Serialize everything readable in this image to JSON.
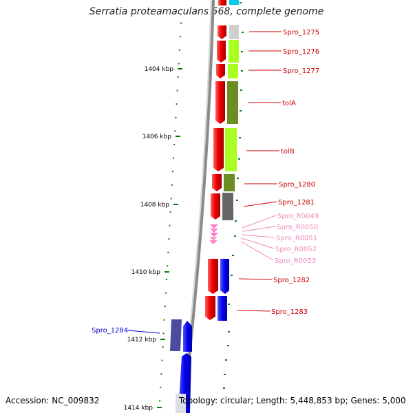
{
  "title": "Serratia proteamaculans 568, complete genome",
  "footer": {
    "accession": "Accession: NC_009832",
    "topology": "Topology: circular; Length: 5,448,853 bp; Genes: 5,000"
  },
  "colors": {
    "backbone": "#8a8a8a",
    "forward_strand": "#ee0000",
    "gene_label_red": "#cc0000",
    "gene_label_pink": "#ee88bb",
    "gene_label_blue": "#0000cc",
    "tick": "#008000"
  },
  "ruler_labels": [
    "1404 kbp",
    "1406 kbp",
    "1408 kbp",
    "1410 kbp",
    "1412 kbp",
    "1414 kbp"
  ],
  "genes": [
    {
      "label": "Spro_1275"
    },
    {
      "label": "Spro_1276"
    },
    {
      "label": "Spro_1277"
    },
    {
      "label": "tolA"
    },
    {
      "label": "tolB"
    },
    {
      "label": "Spro_1280"
    },
    {
      "label": "Spro_1281"
    },
    {
      "label": "Spro_R0049"
    },
    {
      "label": "Spro_R0050"
    },
    {
      "label": "Spro_R0051"
    },
    {
      "label": "Spro_R0052"
    },
    {
      "label": "Spro_R0053"
    },
    {
      "label": "Spro_1282"
    },
    {
      "label": "Spro_1283"
    },
    {
      "label": "Spro_1284"
    }
  ]
}
